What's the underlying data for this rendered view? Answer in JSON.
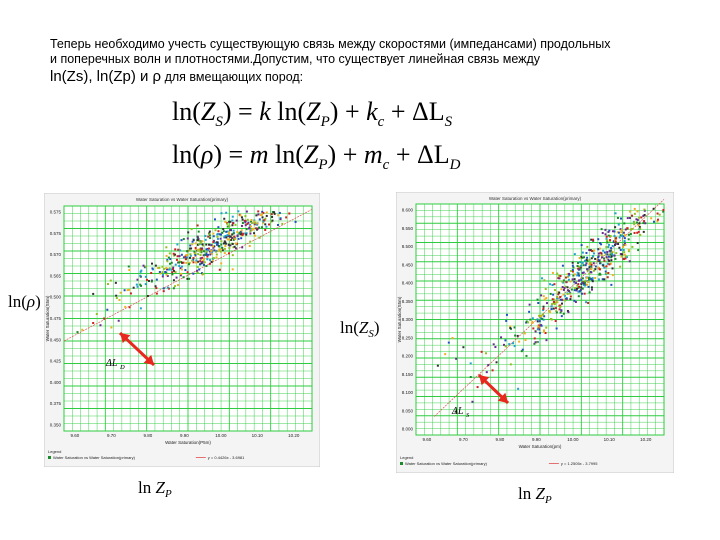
{
  "intro": {
    "line1": "Теперь необходимо учесть существующую связь между скоростями (импедансами) продольных",
    "line2": "и поперечных волн и плотностями.Допустим, что существует линейная связь между",
    "line3_main": "ln(Zs), ln(Zp) и ρ",
    "line3_small": " для вмещающих пород:"
  },
  "equations": {
    "eq1": {
      "lhs_ln": "ln(",
      "lhs_var": "Z",
      "lhs_sub": "S",
      "lhs_close": ")",
      "eq": " = ",
      "k": "k",
      "rhs_ln": " ln(",
      "rhs_var": "Z",
      "rhs_sub": "P",
      "rhs_close": ")",
      "plus1": " + ",
      "kc": "k",
      "kc_sub": "c",
      "plus2": " + ΔL",
      "dl_sub": "S"
    },
    "eq2": {
      "lhs_ln": "ln(",
      "lhs_var": "ρ",
      "lhs_close": ")",
      "eq": " = ",
      "m": "m",
      "rhs_ln": " ln(",
      "rhs_var": "Z",
      "rhs_sub": "P",
      "rhs_close": ")",
      "plus1": " + ",
      "mc": "m",
      "mc_sub": "c",
      "plus2": " + ΔL",
      "dl_sub": "D"
    }
  },
  "axis_labels": {
    "left_y": {
      "ln": "ln(",
      "var": "ρ",
      "close": ")"
    },
    "left_x": {
      "ln": "ln ",
      "var": "Z",
      "sub": "P"
    },
    "right_y": {
      "ln": "ln",
      "open": "(",
      "var": "Z",
      "sub": "S",
      "close": ")"
    },
    "right_x": {
      "ln": "ln ",
      "var": "Z",
      "sub": "P"
    }
  },
  "colors": {
    "grid": "#2ecc40",
    "arrow": "#e8281e",
    "trend": "#e05050"
  },
  "chart_data": [
    {
      "type": "scatter",
      "title": "Water Saturation vs Water Saturation(primary)",
      "xlabel": "Water Saturation(P5m)",
      "ylabel": "Water Saturation(S5m)",
      "x_ticks": [
        "9.60",
        "9.70",
        "9.80",
        "9.90",
        "10.00",
        "10.10",
        "10.20"
      ],
      "y_ticks": [
        "0.575",
        "0.575",
        "0.570",
        "0.565",
        "0.500",
        "0.475",
        "0.450",
        "0.425",
        "0.400",
        "0.375",
        "0.350"
      ],
      "xlim": [
        9.57,
        10.25
      ],
      "legend_title": "Legend",
      "legend_entries": [
        "Water Saturation vs Water Saturation(primary)",
        "y = 0.4426x - 3.6981"
      ],
      "annotation": "ΔL",
      "annotation_sub": "D",
      "trend": {
        "x0": 9.57,
        "y0": 0.4,
        "x1": 10.25,
        "y1": 0.985
      },
      "cluster": {
        "center": [
          9.98,
          0.83
        ],
        "spread": [
          0.11,
          0.1
        ],
        "n": 520
      },
      "outliers": [
        [
          9.65,
          0.48
        ],
        [
          9.68,
          0.5
        ],
        [
          9.7,
          0.46
        ],
        [
          9.66,
          0.52
        ],
        [
          9.72,
          0.49
        ],
        [
          9.75,
          0.55
        ],
        [
          9.62,
          0.45
        ],
        [
          9.67,
          0.47
        ],
        [
          9.8,
          0.6
        ]
      ],
      "grid": true
    },
    {
      "type": "scatter",
      "title": "Water Saturation vs Water Saturation(primary)",
      "xlabel": "Water Saturation(pm)",
      "ylabel": "Water Saturation(S5m)",
      "x_ticks": [
        "9.60",
        "9.70",
        "9.80",
        "9.90",
        "10.00",
        "10.10",
        "10.20"
      ],
      "y_ticks": [
        "8.600",
        "8.550",
        "8.500",
        "8.450",
        "8.400",
        "8.350",
        "8.300",
        "8.250",
        "8.200",
        "8.150",
        "8.100",
        "8.050",
        "8.000"
      ],
      "xlim": [
        9.57,
        10.25
      ],
      "legend_title": "Legend",
      "legend_entries": [
        "Water Saturation vs Water Saturation(primary)",
        "y = 1.2505x - 3.7995"
      ],
      "annotation": "ΔL",
      "annotation_sub": "S",
      "trend": {
        "x0": 9.62,
        "y0": 0.08,
        "x1": 10.25,
        "y1": 1.02
      },
      "cluster": {
        "center": [
          10.05,
          0.72
        ],
        "spread": [
          0.11,
          0.13
        ],
        "n": 560
      },
      "outliers": [
        [
          9.65,
          0.35
        ],
        [
          9.68,
          0.33
        ],
        [
          9.7,
          0.38
        ],
        [
          9.66,
          0.4
        ],
        [
          9.72,
          0.31
        ],
        [
          9.75,
          0.36
        ],
        [
          9.63,
          0.3
        ],
        [
          9.67,
          0.42
        ],
        [
          9.78,
          0.28
        ],
        [
          9.85,
          0.2
        ]
      ],
      "grid": true
    }
  ]
}
